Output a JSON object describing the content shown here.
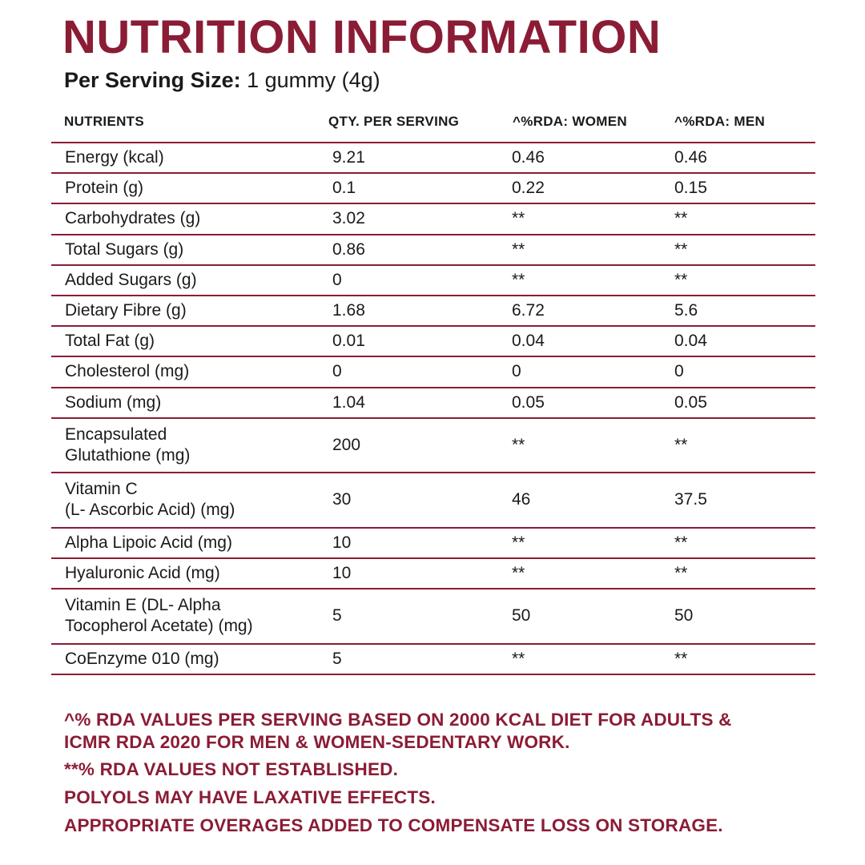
{
  "title": "NUTRITION INFORMATION",
  "serving": {
    "label": "Per Serving Size:",
    "value": "1 gummy (4g)"
  },
  "columns": [
    "NUTRIENTS",
    "QTY. PER SERVING",
    "^%RDA: WOMEN",
    "^%RDA: MEN"
  ],
  "rows": [
    {
      "name": [
        "Energy (kcal)"
      ],
      "qty": "9.21",
      "women": "0.46",
      "men": "0.46"
    },
    {
      "name": [
        "Protein (g)"
      ],
      "qty": "0.1",
      "women": "0.22",
      "men": "0.15"
    },
    {
      "name": [
        "Carbohydrates (g)"
      ],
      "qty": "3.02",
      "women": "**",
      "men": "**"
    },
    {
      "name": [
        "Total Sugars (g)"
      ],
      "qty": "0.86",
      "women": "**",
      "men": "**"
    },
    {
      "name": [
        "Added Sugars (g)"
      ],
      "qty": "0",
      "women": "**",
      "men": "**"
    },
    {
      "name": [
        "Dietary Fibre (g)"
      ],
      "qty": "1.68",
      "women": "6.72",
      "men": "5.6"
    },
    {
      "name": [
        "Total Fat (g)"
      ],
      "qty": "0.01",
      "women": "0.04",
      "men": "0.04"
    },
    {
      "name": [
        "Cholesterol (mg)"
      ],
      "qty": "0",
      "women": "0",
      "men": "0"
    },
    {
      "name": [
        "Sodium (mg)"
      ],
      "qty": "1.04",
      "women": "0.05",
      "men": "0.05"
    },
    {
      "name": [
        "Encapsulated",
        "Glutathione (mg)"
      ],
      "qty": "200",
      "women": "**",
      "men": "**"
    },
    {
      "name": [
        "Vitamin C",
        "(L- Ascorbic Acid) (mg)"
      ],
      "qty": "30",
      "women": "46",
      "men": "37.5"
    },
    {
      "name": [
        "Alpha Lipoic Acid (mg)"
      ],
      "qty": "10",
      "women": "**",
      "men": "**"
    },
    {
      "name": [
        "Hyaluronic Acid (mg)"
      ],
      "qty": "10",
      "women": "**",
      "men": "**"
    },
    {
      "name": [
        "Vitamin E (DL- Alpha",
        "Tocopherol Acetate) (mg)"
      ],
      "qty": "5",
      "women": "50",
      "men": "50"
    },
    {
      "name": [
        "CoEnzyme 010 (mg)"
      ],
      "qty": "5",
      "women": "**",
      "men": "**"
    }
  ],
  "notes": {
    "rda_basis_line1": "^% RDA VALUES PER SERVING BASED ON 2000 KCAL DIET FOR ADULTS &",
    "rda_basis_line2": "ICMR RDA 2020 FOR MEN & WOMEN-SEDENTARY WORK.",
    "not_established": "**% RDA VALUES NOT ESTABLISHED.",
    "polyols": "POLYOLS MAY HAVE LAXATIVE EFFECTS.",
    "overages": "APPROPRIATE OVERAGES ADDED TO COMPENSATE LOSS ON STORAGE."
  },
  "colors": {
    "accent": "#8b1c35",
    "text": "#1a1a1a"
  }
}
